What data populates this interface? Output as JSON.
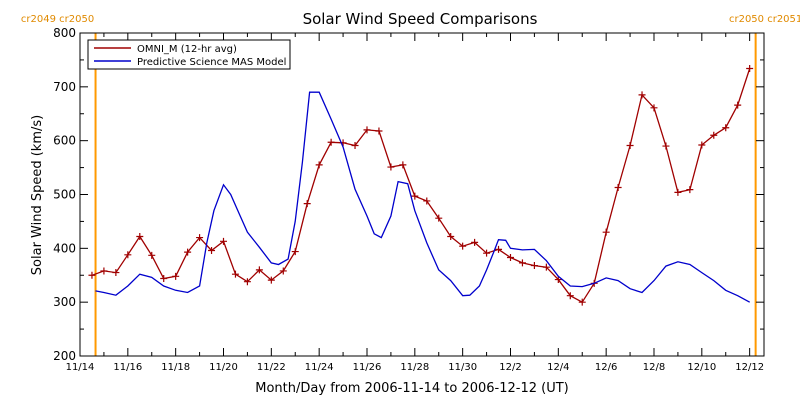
{
  "chart_data": {
    "type": "line",
    "title": "Solar Wind Speed Comparisons",
    "xlabel": "Month/Day from 2006-11-14 to 2006-12-12 (UT)",
    "ylabel": "Solar Wind Speed (km/s)",
    "xlim": [
      0,
      28.6
    ],
    "ylim": [
      200,
      800
    ],
    "yticks": [
      200,
      300,
      400,
      500,
      600,
      700,
      800
    ],
    "xticks": [
      {
        "label": "11/14",
        "day": 0
      },
      {
        "label": "11/16",
        "day": 2
      },
      {
        "label": "11/18",
        "day": 4
      },
      {
        "label": "11/20",
        "day": 6
      },
      {
        "label": "11/22",
        "day": 8
      },
      {
        "label": "11/24",
        "day": 10
      },
      {
        "label": "11/26",
        "day": 12
      },
      {
        "label": "11/28",
        "day": 14
      },
      {
        "label": "11/30",
        "day": 16
      },
      {
        "label": "12/2",
        "day": 18
      },
      {
        "label": "12/4",
        "day": 20
      },
      {
        "label": "12/6",
        "day": 22
      },
      {
        "label": "12/8",
        "day": 24
      },
      {
        "label": "12/10",
        "day": 26
      },
      {
        "label": "12/12",
        "day": 28
      }
    ],
    "rotation_markers": [
      {
        "day": 0.65,
        "label": "cr2049 cr2050",
        "side": "left"
      },
      {
        "day": 28.25,
        "label": "cr2050 cr2051",
        "side": "right"
      }
    ],
    "legend_position": "top-left",
    "series": [
      {
        "name": "OMNI_M (12-hr avg)",
        "color": "#a00000",
        "markers": true,
        "x": [
          0.5,
          1.0,
          1.5,
          2.0,
          2.5,
          3.0,
          3.5,
          4.0,
          4.5,
          5.0,
          5.5,
          6.0,
          6.5,
          7.0,
          7.5,
          8.0,
          8.5,
          9.0,
          9.5,
          10.0,
          10.5,
          11.0,
          11.5,
          12.0,
          12.5,
          13.0,
          13.5,
          14.0,
          14.5,
          15.0,
          15.5,
          16.0,
          16.5,
          17.0,
          17.5,
          18.0,
          18.5,
          19.0,
          19.5,
          20.0,
          20.5,
          21.0,
          21.5,
          22.0,
          22.5,
          23.0,
          23.5,
          24.0,
          24.5,
          25.0,
          25.5,
          26.0,
          26.5,
          27.0,
          27.5,
          28.0
        ],
        "y": [
          350,
          358,
          355,
          388,
          422,
          387,
          344,
          348,
          393,
          420,
          396,
          413,
          352,
          338,
          360,
          341,
          358,
          394,
          483,
          555,
          597,
          596,
          591,
          620,
          618,
          551,
          555,
          497,
          488,
          456,
          422,
          404,
          411,
          391,
          398,
          383,
          373,
          368,
          365,
          342,
          312,
          300,
          335,
          430,
          513,
          591,
          685,
          661,
          590,
          504,
          509,
          592,
          610,
          624,
          666,
          734
        ]
      },
      {
        "name": "Predictive Science MAS Model",
        "color": "#0000cc",
        "markers": false,
        "x": [
          0.65,
          1.0,
          1.5,
          2.0,
          2.5,
          3.0,
          3.5,
          4.0,
          4.5,
          5.0,
          5.3,
          5.6,
          6.0,
          6.3,
          6.7,
          7.0,
          7.5,
          8.0,
          8.3,
          8.7,
          9.0,
          9.3,
          9.6,
          10.0,
          10.5,
          11.0,
          11.5,
          12.0,
          12.3,
          12.6,
          13.0,
          13.3,
          13.7,
          14.0,
          14.5,
          15.0,
          15.5,
          16.0,
          16.3,
          16.7,
          17.0,
          17.3,
          17.5,
          17.8,
          18.0,
          18.5,
          19.0,
          19.5,
          20.0,
          20.5,
          21.0,
          21.5,
          22.0,
          22.5,
          23.0,
          23.5,
          24.0,
          24.5,
          25.0,
          25.5,
          26.0,
          26.5,
          27.0,
          27.5,
          28.0
        ],
        "y": [
          321,
          318,
          313,
          330,
          352,
          346,
          330,
          322,
          318,
          330,
          410,
          470,
          518,
          500,
          460,
          430,
          402,
          373,
          370,
          380,
          450,
          560,
          690,
          690,
          640,
          588,
          510,
          460,
          427,
          420,
          460,
          524,
          520,
          470,
          410,
          360,
          340,
          312,
          313,
          330,
          360,
          393,
          416,
          415,
          400,
          397,
          398,
          377,
          348,
          330,
          329,
          335,
          345,
          340,
          325,
          318,
          340,
          367,
          375,
          370,
          355,
          340,
          322,
          312,
          300
        ]
      }
    ]
  }
}
